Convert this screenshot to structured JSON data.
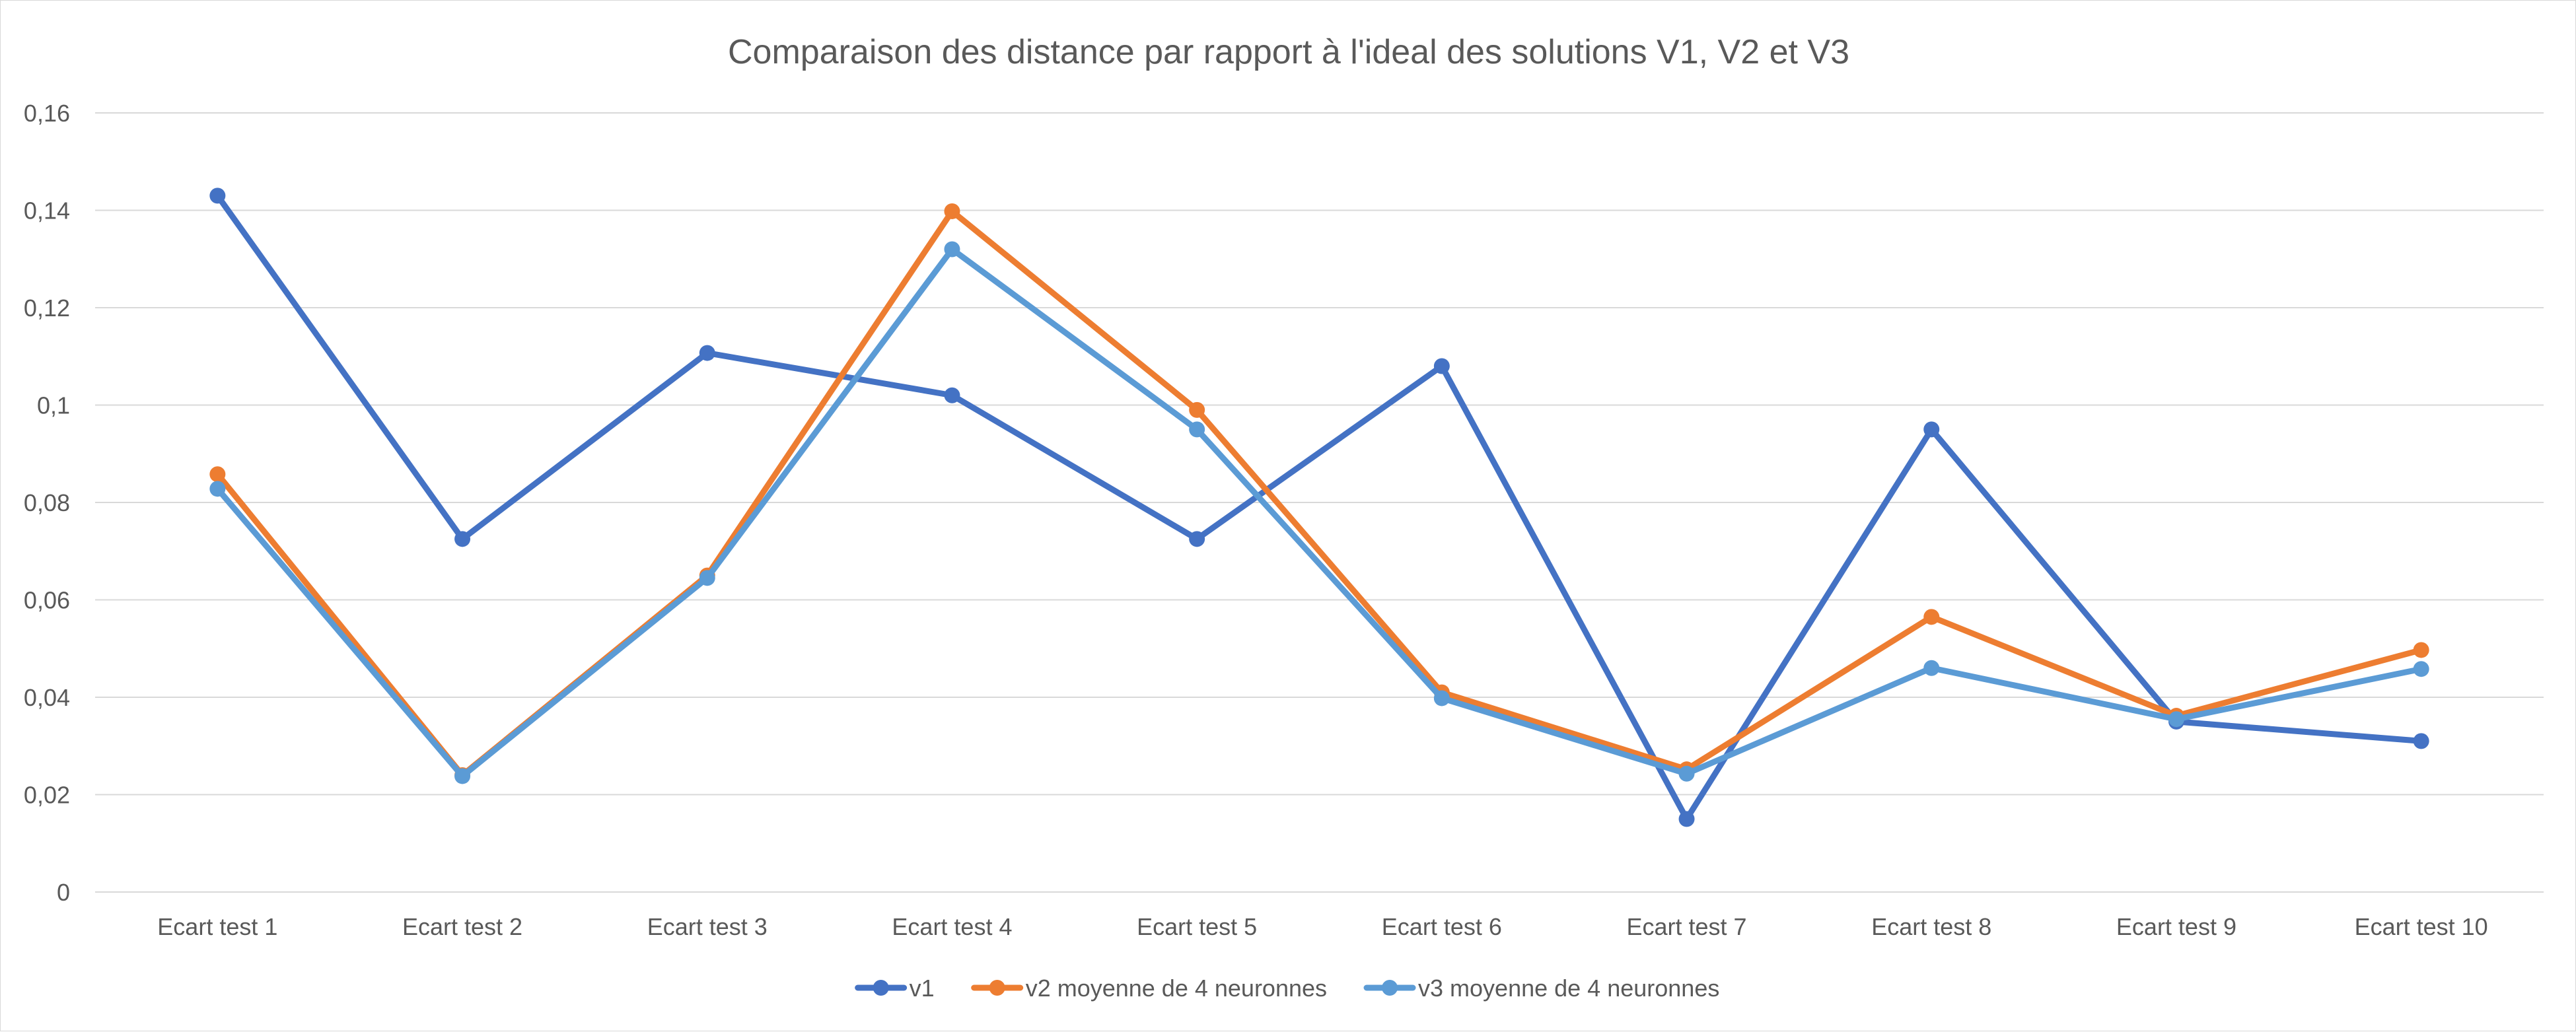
{
  "chart_data": {
    "type": "line",
    "title": "Comparaison des distance par rapport à l'ideal des solutions V1, V2 et V3",
    "xlabel": "",
    "ylabel": "",
    "categories": [
      "Ecart test 1",
      "Ecart test 2",
      "Ecart test 3",
      "Ecart test 4",
      "Ecart test 5",
      "Ecart test 6",
      "Ecart test 7",
      "Ecart test 8",
      "Ecart test 9",
      "Ecart test 10"
    ],
    "ylim": [
      0,
      0.16
    ],
    "yticks": [
      0,
      0.02,
      0.04,
      0.06,
      0.08,
      0.1,
      0.12,
      0.14,
      0.16
    ],
    "ytick_labels": [
      "0",
      "0,02",
      "0,04",
      "0,06",
      "0,08",
      "0,1",
      "0,12",
      "0,14",
      "0,16"
    ],
    "grid": true,
    "legend_position": "bottom",
    "series": [
      {
        "name": "v1",
        "color": "#4472c4",
        "values": [
          0.143,
          0.0725,
          0.1107,
          0.102,
          0.0725,
          0.108,
          0.015,
          0.095,
          0.035,
          0.031
        ]
      },
      {
        "name": "v2 moyenne de 4 neuronnes",
        "color": "#ed7d31",
        "values": [
          0.0858,
          0.024,
          0.065,
          0.1398,
          0.099,
          0.041,
          0.0252,
          0.0565,
          0.0362,
          0.0497
        ]
      },
      {
        "name": "v3 moyenne de 4 neuronnes",
        "color": "#5b9bd5",
        "values": [
          0.0828,
          0.0238,
          0.0645,
          0.132,
          0.095,
          0.0398,
          0.0243,
          0.046,
          0.0355,
          0.0458
        ]
      }
    ]
  }
}
